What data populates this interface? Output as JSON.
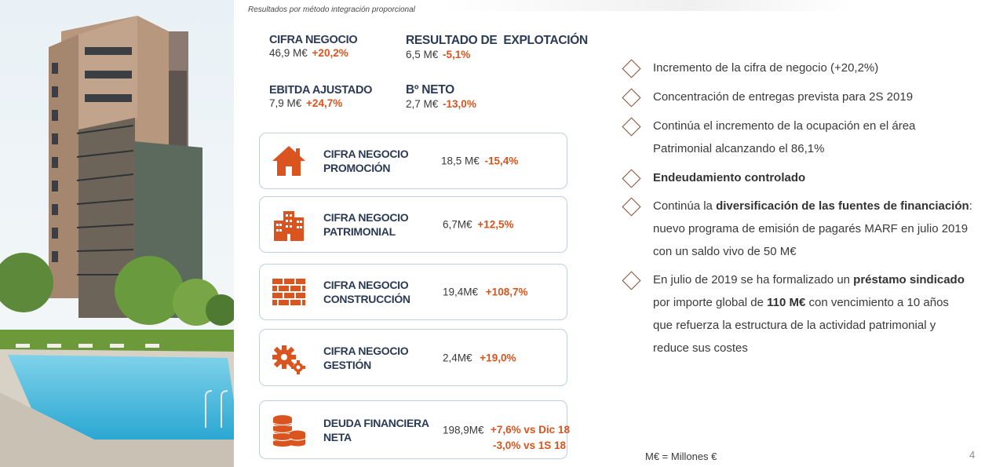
{
  "header": {
    "subtitle": "Resultados por método integración proporcional"
  },
  "kpis": [
    {
      "label": "CIFRA NEGOCIO",
      "value": "46,9 M€",
      "change": "+20,2%"
    },
    {
      "label": "RESULTADO DE  EXPLOTACIÓN",
      "value": "6,5 M€",
      "change": "-5,1%"
    },
    {
      "label": "EBITDA AJUSTADO",
      "value": "7,9 M€",
      "change": "+24,7%"
    },
    {
      "label": "Bº NETO",
      "value": "2,7 M€",
      "change": "-13,0%"
    }
  ],
  "cards": [
    {
      "icon": "house-icon",
      "line1": "CIFRA NEGOCIO",
      "line2": "PROMOCIÓN",
      "value": "18,5 M€",
      "change": "-15,4%"
    },
    {
      "icon": "buildings-icon",
      "line1": "CIFRA NEGOCIO",
      "line2": "PATRIMONIAL",
      "value": "6,7M€",
      "change": "+12,5%"
    },
    {
      "icon": "brick-wall-icon",
      "line1": "CIFRA NEGOCIO",
      "line2": "CONSTRUCCIÓN",
      "value": "19,4M€",
      "change": "+108,7%"
    },
    {
      "icon": "gears-icon",
      "line1": "CIFRA NEGOCIO",
      "line2": "GESTIÓN",
      "value": "2,4M€",
      "change": "+19,0%"
    },
    {
      "icon": "coins-stack-icon",
      "line1": "DEUDA FINANCIERA",
      "line2": "NETA",
      "value": "198,9M€",
      "change1": "+7,6% vs Dic 18",
      "change2": "-3,0% vs 1S 18"
    }
  ],
  "bullets": {
    "b1": "Incremento de la cifra de negocio (+20,2%)",
    "b2": "Concentración de entregas prevista para 2S 2019",
    "b3a": "Continúa el incremento de la ocupación en el área",
    "b3b": "Patrimonial alcanzando el 86,1%",
    "b4": "Endeudamiento controlado",
    "b5a": "Continúa la ",
    "b5b": "diversificación de las fuentes de financiación",
    "b5c": ":",
    "b5d": "nuevo programa de emisión de pagarés MARF en julio 2019",
    "b5e": "con un saldo vivo de 50 M€",
    "b6a": "En julio de 2019 se ha formalizado un ",
    "b6b": "préstamo sindicado",
    "b6c": "por importe global de ",
    "b6d": "110 M€",
    "b6e": " con vencimiento a 10 años",
    "b6f": "que refuerza la estructura de la actividad patrimonial y",
    "b6g": "reduce sus costes"
  },
  "footer": {
    "note": "M€ = Millones €",
    "page": "4"
  },
  "colors": {
    "accent": "#d9541e",
    "label": "#2b3a55",
    "border": "#c2cdde"
  }
}
